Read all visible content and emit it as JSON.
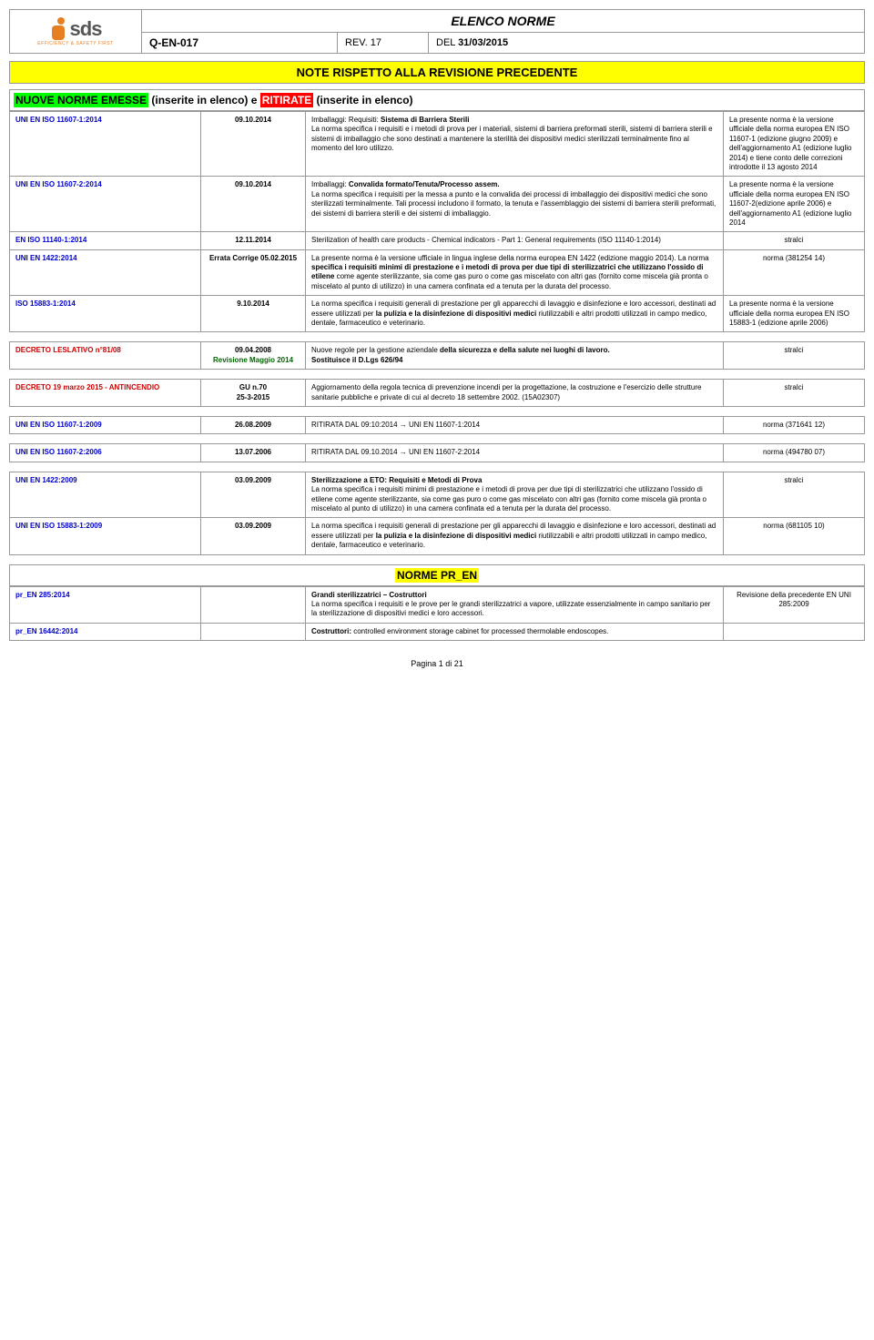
{
  "header": {
    "title": "ELENCO NORME",
    "logo_text": "sds",
    "logo_tagline": "EFFICIENCY & SAFETY FIRST",
    "code": "Q-EN-017",
    "rev_label": "REV.",
    "rev_num": "17",
    "del_label": "DEL",
    "del_date": "31/03/2015"
  },
  "banner": "NOTE RISPETTO ALLA REVISIONE PRECEDENTE",
  "section1": {
    "prefix": "NUOVE NORME EMESSE",
    "mid": " (inserite in elenco) e ",
    "ritirate": "RITIRATE",
    "suffix": " (inserite in elenco)"
  },
  "rows": [
    {
      "c1": "UNI EN ISO 11607-1:2014",
      "c2": "09.10.2014",
      "c3": "Imballaggi: Requisiti: <b>Sistema di Barriera Sterili</b><br>La norma specifica i requisiti e i metodi di prova per i materiali, sistemi di barriera preformati sterili, sistemi di barriera sterili e sistemi di imballaggio che sono destinati a mantenere la sterilità dei dispositivi medici sterilizzati terminalmente fino al momento del loro utilizzo.",
      "c4": "La presente norma è la versione ufficiale della norma europea EN ISO 11607-1 (edizione giugno 2009) e dell'aggiornamento A1 (edizione luglio 2014) e tiene conto delle correzioni introdotte il 13 agosto 2014",
      "c4_align": "left"
    },
    {
      "c1": "UNI EN ISO 11607-2:2014",
      "c2": "09.10.2014",
      "c3": "Imballaggi: <b>Convalida formato/Tenuta/Processo assem.</b><br>La norma specifica i requisiti per la messa a punto e la convalida dei processi di imballaggio dei dispositivi medici che sono sterilizzati terminalmente. Tali processi includono il formato, la tenuta e l'assemblaggio dei sistemi di barriera sterili preformati, dei sistemi di barriera sterili e dei sistemi di imballaggio.",
      "c4": "La presente norma è la versione ufficiale della norma europea EN ISO 11607-2(edizione aprile 2006) e dell'aggiornamento A1 (edizione luglio 2014",
      "c4_align": "left"
    },
    {
      "c1": "EN ISO 11140-1:2014",
      "c2": "12.11.2014",
      "c3": "Sterilization of health care products - Chemical indicators - Part 1: General requirements (ISO 11140-1:2014)",
      "c4": "stralci"
    },
    {
      "c1": "UNI EN 1422:2014",
      "c2": "Errata Corrige 05.02.2015",
      "c3": "La presente norma è la versione ufficiale in lingua inglese della norma europea EN 1422 (edizione maggio 2014). La norma <b>specifica i requisiti minimi di prestazione e i metodi di prova per due tipi di sterilizzatrici che utilizzano l'ossido di etilene</b> come agente sterilizzante, sia come gas puro o come gas miscelato con altri gas (fornito come miscela già pronta o miscelato al punto di utilizzo) in una camera confinata ed a tenuta per la durata del processo.",
      "c4": "norma (381254 14)"
    },
    {
      "c1": "ISO 15883-1:2014",
      "c2": "9.10.2014",
      "c3": "La norma specifica i requisiti generali di prestazione per gli apparecchi di lavaggio e disinfezione e loro accessori, destinati ad essere utilizzati per <b>la pulizia e la disinfezione di dispositivi medici</b> riutilizzabili e altri prodotti utilizzati in campo medico, dentale, farmaceutico e veterinario.",
      "c4": "La presente norma è la versione ufficiale della norma europea EN ISO 15883-1 (edizione aprile 2006)",
      "c4_align": "left"
    }
  ],
  "rows2": [
    {
      "c1": "DECRETO LESLATIVO n°81/08",
      "c1_red": true,
      "c2": "09.04.2008<br><span style='color:#006600;font-weight:bold'>Revisione Maggio 2014</span>",
      "c3": "Nuove regole per la gestione aziendale <b>della sicurezza e della salute nei luoghi di lavoro.</b><br><b>Sostituisce il D.Lgs 626/94</b>",
      "c4": "stralci"
    }
  ],
  "rows3": [
    {
      "c1": "DECRETO 19 marzo 2015 - ANTINCENDIO",
      "c1_red": true,
      "c2": "GU n.70<br>25-3-2015",
      "c3": "Aggiornamento della regola tecnica di prevenzione incendi per la progettazione, la costruzione e l'esercizio delle strutture sanitarie pubbliche e private di cui al decreto 18 settembre 2002. (15A02307)",
      "c4": "stralci"
    }
  ],
  "rows4": [
    {
      "c1": "UNI EN ISO 11607-1:2009",
      "c2": "26.08.2009",
      "c3": "RITIRATA DAL 09:10:2014 → UNI EN 11607-1:2014",
      "c4": "norma (371641 12)"
    }
  ],
  "rows5": [
    {
      "c1": "UNI EN ISO 11607-2:2006",
      "c2": "13.07.2006",
      "c3": "RITIRATA DAL 09.10.2014 → UNI EN 11607-2:2014",
      "c4": "norma (494780 07)"
    }
  ],
  "rows6": [
    {
      "c1": "UNI EN 1422:2009",
      "c2": "03.09.2009",
      "c3": "<b>Sterilizzazione a ETO: Requisiti e Metodi di Prova</b><br>La norma specifica i requisiti minimi di prestazione e i metodi di prova per due tipi di sterilizzatrici che utilizzano l'ossido di etilene come agente sterilizzante, sia come gas puro o come gas miscelato con altri gas (fornito come miscela già pronta o miscelato al punto di utilizzo) in una camera confinata ed a tenuta per la durata del processo.",
      "c4": "stralci"
    },
    {
      "c1": "UNI EN ISO 15883-1:2009",
      "c2": "03.09.2009",
      "c3": "La norma specifica i requisiti generali di prestazione per gli apparecchi di lavaggio e disinfezione e loro accessori, destinati ad essere utilizzati per <b>la pulizia e la disinfezione di dispositivi medici</b> riutilizzabili e altri prodotti utilizzati in campo medico, dentale, farmaceutico e veterinario.",
      "c4": "norma (681105 10)"
    }
  ],
  "section2_title": "NORME PR_EN",
  "rows7": [
    {
      "c1": "pr_EN 285:2014",
      "c2": "",
      "c3": "<b>Grandi sterilizzatrici – Costruttori</b><br>La norma specifica i requisiti e le prove per le grandi sterilizzatrici a vapore, utilizzate essenzialmente in campo sanitario per la sterilizzazione di dispositivi medici e loro accessori.",
      "c4": "Revisione della precedente EN UNI 285:2009"
    },
    {
      "c1": "pr_EN 16442:2014",
      "c2": "",
      "c3": "<b>Costruttori:</b> controlled environment storage cabinet for processed thermolable endoscopes.",
      "c4": ""
    }
  ],
  "page": "Pagina 1 di 21"
}
